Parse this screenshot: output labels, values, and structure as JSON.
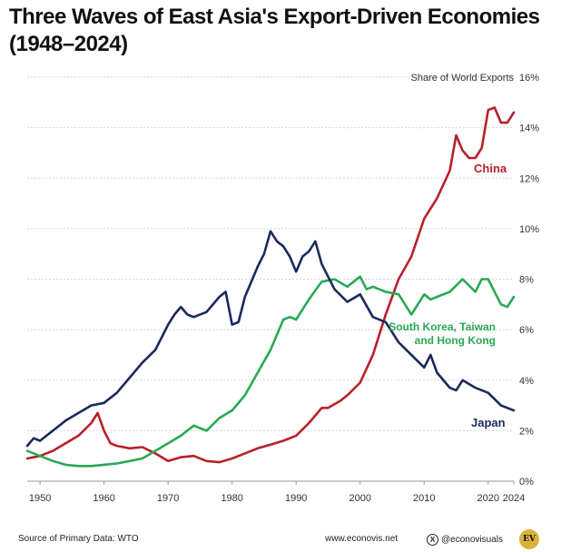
{
  "chart_data": {
    "type": "line",
    "title": "Three Waves of East Asia's Export-Driven Economies (1948–2024)",
    "ylabel": "Share of World Exports",
    "xlim": [
      1948,
      2024
    ],
    "ylim": [
      0,
      16
    ],
    "x_ticks": [
      "1950",
      "1960",
      "1970",
      "1980",
      "1990",
      "2000",
      "2010",
      "2020",
      "2024"
    ],
    "y_ticks": [
      "0%",
      "2%",
      "4%",
      "6%",
      "8%",
      "10%",
      "12%",
      "14%",
      "16%"
    ],
    "grid": "horizontal",
    "colors": {
      "china": "#b8202a",
      "skth": "#2aa855",
      "japan": "#1a2a5c"
    },
    "series": [
      {
        "name": "China",
        "x": [
          1948,
          1950,
          1952,
          1954,
          1956,
          1958,
          1959,
          1960,
          1961,
          1962,
          1964,
          1966,
          1968,
          1970,
          1972,
          1974,
          1976,
          1978,
          1980,
          1982,
          1984,
          1986,
          1988,
          1990,
          1992,
          1994,
          1995,
          1997,
          1998,
          2000,
          2002,
          2004,
          2006,
          2008,
          2010,
          2012,
          2014,
          2015,
          2016,
          2017,
          2018,
          2019,
          2020,
          2021,
          2022,
          2023,
          2024
        ],
        "values": [
          0.9,
          1.0,
          1.2,
          1.5,
          1.8,
          2.3,
          2.7,
          2.0,
          1.5,
          1.4,
          1.3,
          1.35,
          1.1,
          0.8,
          0.95,
          1.0,
          0.8,
          0.75,
          0.9,
          1.1,
          1.3,
          1.45,
          1.6,
          1.8,
          2.3,
          2.9,
          2.9,
          3.2,
          3.4,
          3.9,
          5.0,
          6.6,
          8.0,
          8.9,
          10.4,
          11.2,
          12.3,
          13.7,
          13.1,
          12.8,
          12.8,
          13.2,
          14.7,
          14.8,
          14.2,
          14.2,
          14.6
        ]
      },
      {
        "name": "South Korea, Taiwan and Hong Kong",
        "x": [
          1948,
          1950,
          1952,
          1954,
          1956,
          1958,
          1960,
          1962,
          1964,
          1966,
          1968,
          1970,
          1972,
          1974,
          1976,
          1978,
          1980,
          1982,
          1984,
          1986,
          1988,
          1989,
          1990,
          1992,
          1994,
          1996,
          1998,
          2000,
          2001,
          2002,
          2004,
          2006,
          2008,
          2010,
          2011,
          2012,
          2014,
          2016,
          2018,
          2019,
          2020,
          2021,
          2022,
          2023,
          2024
        ],
        "values": [
          1.2,
          1.0,
          0.8,
          0.65,
          0.6,
          0.6,
          0.65,
          0.7,
          0.8,
          0.9,
          1.2,
          1.5,
          1.8,
          2.2,
          2.0,
          2.5,
          2.8,
          3.4,
          4.3,
          5.2,
          6.4,
          6.5,
          6.4,
          7.2,
          7.9,
          8.0,
          7.7,
          8.1,
          7.6,
          7.7,
          7.5,
          7.4,
          6.6,
          7.4,
          7.2,
          7.3,
          7.5,
          8.0,
          7.5,
          8.0,
          8.0,
          7.5,
          7.0,
          6.9,
          7.3
        ]
      },
      {
        "name": "Japan",
        "x": [
          1948,
          1949,
          1950,
          1952,
          1954,
          1956,
          1958,
          1960,
          1962,
          1964,
          1966,
          1968,
          1970,
          1971,
          1972,
          1973,
          1974,
          1976,
          1978,
          1979,
          1980,
          1981,
          1982,
          1984,
          1985,
          1986,
          1987,
          1988,
          1989,
          1990,
          1991,
          1992,
          1993,
          1994,
          1996,
          1998,
          2000,
          2002,
          2004,
          2006,
          2008,
          2010,
          2011,
          2012,
          2014,
          2015,
          2016,
          2018,
          2020,
          2022,
          2024
        ],
        "values": [
          1.4,
          1.7,
          1.6,
          2.0,
          2.4,
          2.7,
          3.0,
          3.1,
          3.5,
          4.1,
          4.7,
          5.2,
          6.2,
          6.6,
          6.9,
          6.6,
          6.5,
          6.7,
          7.3,
          7.5,
          6.2,
          6.3,
          7.3,
          8.5,
          9.0,
          9.9,
          9.5,
          9.3,
          8.9,
          8.3,
          8.9,
          9.1,
          9.5,
          8.6,
          7.6,
          7.1,
          7.4,
          6.5,
          6.3,
          5.5,
          5.0,
          4.5,
          5.0,
          4.3,
          3.7,
          3.6,
          4.0,
          3.7,
          3.5,
          3.0,
          2.8
        ]
      }
    ],
    "annotations": {
      "china": "China",
      "skth_line1": "South Korea, Taiwan",
      "skth_line2": "and Hong Kong",
      "japan": "Japan"
    }
  },
  "footer": {
    "source": "Source of Primary Data: WTO",
    "website": "www.econovis.net",
    "social_handle": "@econovisuals",
    "social_icon": "x-icon",
    "logo_text": "EV"
  },
  "title_lines": [
    "Three Waves of East Asia's Export-Driven Economies",
    "(1948–2024)"
  ]
}
